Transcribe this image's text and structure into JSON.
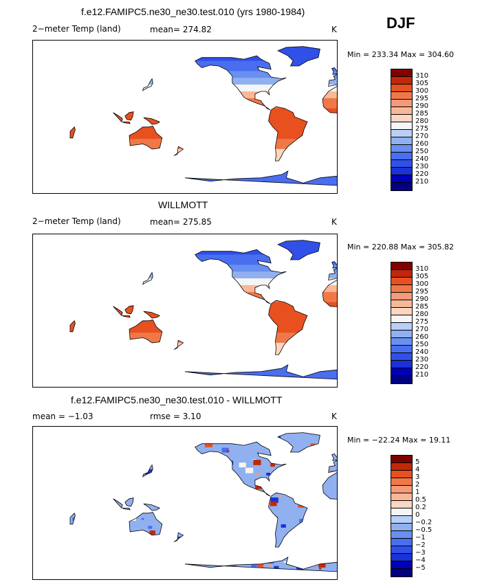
{
  "season": "DJF",
  "panels": [
    {
      "title": "f.e12.FAMIPC5.ne30_ne30.test.010 (yrs 1980-1984)",
      "left_label": "2−meter Temp (land)",
      "center_label": "mean= 274.82",
      "units": "K",
      "minmax": "Min = 233.34 Max = 304.60",
      "kind": "abs",
      "colorbar": [
        "310",
        "305",
        "300",
        "295",
        "290",
        "285",
        "280",
        "275",
        "270",
        "260",
        "250",
        "240",
        "230",
        "220",
        "210"
      ]
    },
    {
      "title": "WILLMOTT",
      "left_label": "2−meter Temp (land)",
      "center_label": "mean= 275.85",
      "units": "K",
      "minmax": "Min = 220.88 Max = 305.82",
      "kind": "abs",
      "colorbar": [
        "310",
        "305",
        "300",
        "295",
        "290",
        "285",
        "280",
        "275",
        "270",
        "260",
        "250",
        "240",
        "230",
        "220",
        "210"
      ]
    },
    {
      "title": "f.e12.FAMIPC5.ne30_ne30.test.010 - WILLMOTT",
      "left_label": "mean =   −1.03",
      "center_label": "rmse =     3.10",
      "units": "K",
      "minmax": "Min = −22.24 Max =   19.11",
      "kind": "diff",
      "colorbar": [
        "5",
        "4",
        "3",
        "2",
        "1",
        "0.5",
        "0.2",
        "0",
        "−0.2",
        "−0.5",
        "−1",
        "−2",
        "−3",
        "−4",
        "−5"
      ]
    }
  ],
  "colors": {
    "scale": [
      "#000080",
      "#0000b8",
      "#1a32d8",
      "#3050e8",
      "#4a6ef0",
      "#6890f0",
      "#90b0f0",
      "#b8d0f8",
      "#f5f5f5",
      "#fcd6c0",
      "#f8b898",
      "#f49a78",
      "#f07848",
      "#e85020",
      "#c02808",
      "#800000"
    ]
  }
}
